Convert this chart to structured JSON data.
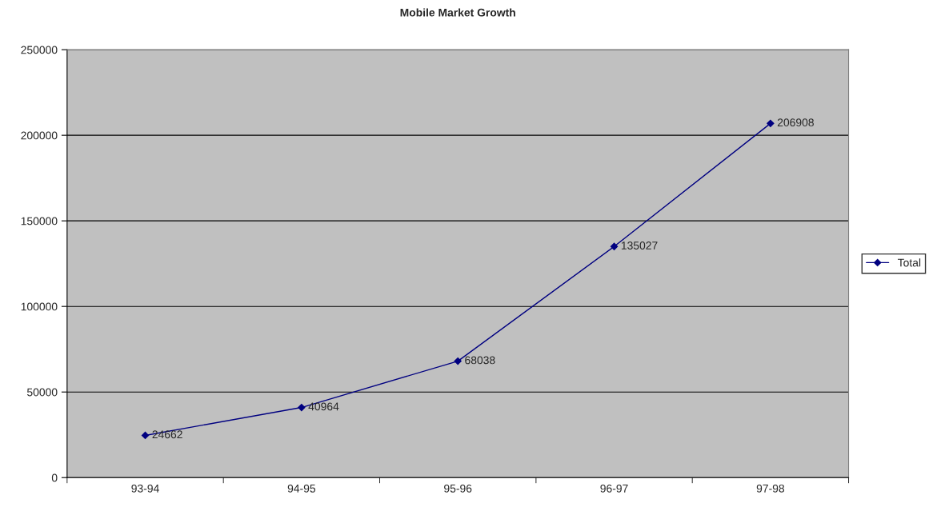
{
  "chart_data": {
    "type": "line",
    "title": "Mobile Market Growth",
    "categories": [
      "93-94",
      "94-95",
      "95-96",
      "96-97",
      "97-98"
    ],
    "series": [
      {
        "name": "Total",
        "color": "#000080",
        "values": [
          24662,
          40964,
          68038,
          135027,
          206908
        ]
      }
    ],
    "ylim": [
      0,
      250000
    ],
    "yticks": [
      0,
      50000,
      100000,
      150000,
      200000,
      250000
    ],
    "grid": "y",
    "legend": "right",
    "marker": "diamond",
    "line_style": "solid",
    "data_labels": true
  }
}
